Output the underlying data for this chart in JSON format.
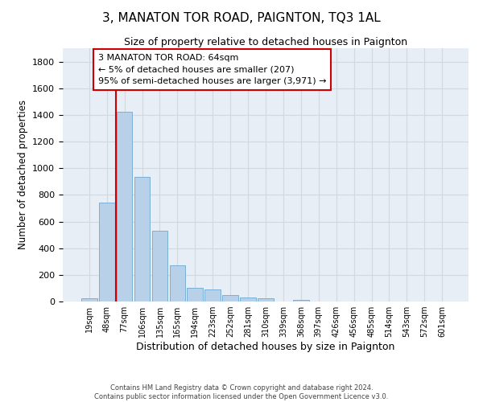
{
  "title": "3, MANATON TOR ROAD, PAIGNTON, TQ3 1AL",
  "subtitle": "Size of property relative to detached houses in Paignton",
  "xlabel": "Distribution of detached houses by size in Paignton",
  "ylabel": "Number of detached properties",
  "categories": [
    "19sqm",
    "48sqm",
    "77sqm",
    "106sqm",
    "135sqm",
    "165sqm",
    "194sqm",
    "223sqm",
    "252sqm",
    "281sqm",
    "310sqm",
    "339sqm",
    "368sqm",
    "397sqm",
    "426sqm",
    "456sqm",
    "485sqm",
    "514sqm",
    "543sqm",
    "572sqm",
    "601sqm"
  ],
  "values": [
    22,
    740,
    1425,
    935,
    530,
    270,
    105,
    90,
    50,
    30,
    22,
    0,
    15,
    0,
    0,
    0,
    0,
    0,
    0,
    0,
    0
  ],
  "bar_color": "#b8d0e8",
  "bar_edgecolor": "#7aafd4",
  "vline_x": 1.5,
  "vline_color": "#cc0000",
  "annotation_text": "3 MANATON TOR ROAD: 64sqm\n← 5% of detached houses are smaller (207)\n95% of semi-detached houses are larger (3,971) →",
  "annotation_box_color": "#ffffff",
  "annotation_box_edgecolor": "#cc0000",
  "ylim": [
    0,
    1900
  ],
  "yticks": [
    0,
    200,
    400,
    600,
    800,
    1000,
    1200,
    1400,
    1600,
    1800
  ],
  "grid_color": "#d0d8e0",
  "bg_color": "#e8eef5",
  "footer_line1": "Contains HM Land Registry data © Crown copyright and database right 2024.",
  "footer_line2": "Contains public sector information licensed under the Open Government Licence v3.0.",
  "title_fontsize": 11,
  "subtitle_fontsize": 9,
  "annotation_fontsize": 8
}
